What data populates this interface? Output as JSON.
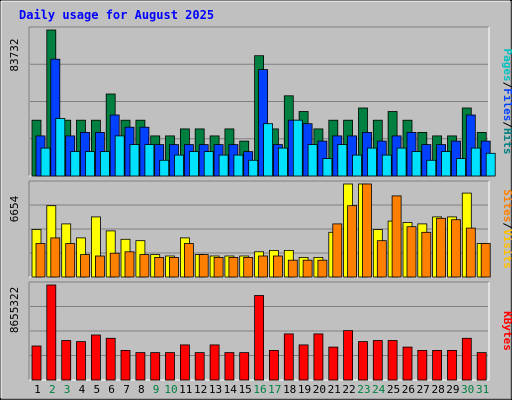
{
  "chart_data": {
    "type": "bar",
    "title": "Daily usage for August 2025",
    "categories": [
      "1",
      "2",
      "3",
      "4",
      "5",
      "6",
      "7",
      "8",
      "9",
      "10",
      "11",
      "12",
      "13",
      "14",
      "15",
      "16",
      "17",
      "18",
      "19",
      "20",
      "21",
      "22",
      "23",
      "24",
      "25",
      "26",
      "27",
      "28",
      "29",
      "30",
      "31"
    ],
    "weekend_days": [
      "2",
      "3",
      "9",
      "10",
      "16",
      "17",
      "23",
      "24",
      "30",
      "31"
    ],
    "panels": [
      {
        "id": "hits",
        "ymax_label": "83732",
        "ymax": 83732,
        "legend": [
          "Pages",
          "/",
          "Files",
          "/",
          "Hits"
        ],
        "series": [
          {
            "name": "Hits",
            "color": "#008040",
            "values": [
              32000,
              83732,
              32000,
              32000,
              32000,
              47000,
              32000,
              32000,
              23000,
              23000,
              27000,
              27000,
              23000,
              27000,
              20000,
              69000,
              27000,
              46000,
              37000,
              27000,
              32000,
              32000,
              39000,
              32000,
              37000,
              32000,
              25000,
              23000,
              23000,
              39000,
              25000
            ]
          },
          {
            "name": "Files",
            "color": "#0040ff",
            "values": [
              23000,
              67000,
              23000,
              25000,
              25000,
              35000,
              28000,
              28000,
              18000,
              18000,
              18000,
              18000,
              18000,
              18000,
              14000,
              61000,
              18000,
              32000,
              30000,
              20000,
              23000,
              23000,
              25000,
              20000,
              23000,
              25000,
              18000,
              18000,
              20000,
              35000,
              20000
            ]
          },
          {
            "name": "Pages",
            "color": "#00e0ff",
            "values": [
              16000,
              33000,
              14000,
              14000,
              14000,
              23000,
              18000,
              18000,
              9000,
              12000,
              14000,
              14000,
              12000,
              12000,
              9000,
              30000,
              16000,
              32000,
              18000,
              10000,
              18000,
              12000,
              16000,
              12000,
              16000,
              14000,
              9000,
              14000,
              10000,
              16000,
              13000
            ]
          }
        ]
      },
      {
        "id": "visits",
        "ymax_label": "6654",
        "ymax": 6654,
        "legend": [
          "Sites",
          "/",
          "Visits"
        ],
        "series": [
          {
            "name": "Visits",
            "color": "#ffff00",
            "values": [
              3400,
              5100,
              3800,
              2800,
              4300,
              3300,
              2700,
              2600,
              1600,
              1500,
              2800,
              1600,
              1500,
              1500,
              1500,
              1800,
              1900,
              1900,
              1400,
              1400,
              3200,
              6654,
              6654,
              3400,
              4000,
              3900,
              3800,
              4300,
              4300,
              6000,
              2400
            ]
          },
          {
            "name": "Sites",
            "color": "#ff8000",
            "values": [
              2400,
              2800,
              2400,
              1600,
              1500,
              1700,
              1800,
              1600,
              1400,
              1400,
              2400,
              1600,
              1400,
              1400,
              1400,
              1500,
              1500,
              1200,
              1200,
              1200,
              3800,
              5100,
              6654,
              2600,
              5800,
              3600,
              3200,
              4200,
              4100,
              3500,
              2400
            ]
          }
        ]
      },
      {
        "id": "kbytes",
        "ymax_label": "8655322",
        "ymax": 8655322,
        "legend": [
          "KBytes"
        ],
        "series": [
          {
            "name": "KBytes",
            "color": "#ff0000",
            "values": [
              3100000,
              8655322,
              3600000,
              3500000,
              4100000,
              3800000,
              2700000,
              2500000,
              2500000,
              2500000,
              3200000,
              2500000,
              3200000,
              2500000,
              2500000,
              7700000,
              2700000,
              4200000,
              3200000,
              4200000,
              3000000,
              4500000,
              3500000,
              3600000,
              3600000,
              3000000,
              2700000,
              2700000,
              2700000,
              3800000,
              2500000
            ]
          }
        ]
      }
    ]
  }
}
